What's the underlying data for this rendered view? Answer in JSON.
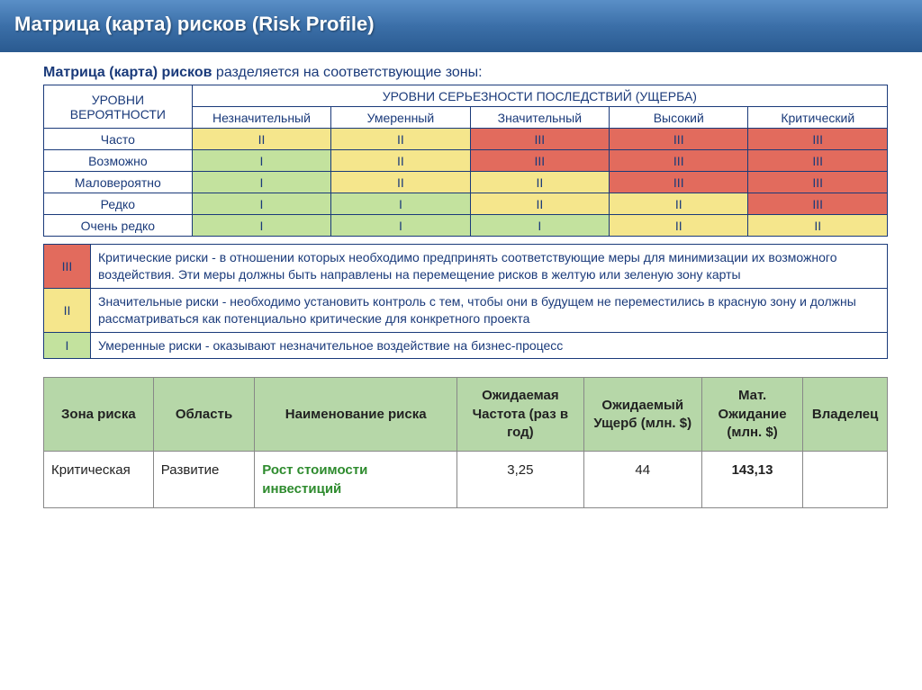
{
  "title": "Матрица (карта) рисков (Risk Profile)",
  "intro_bold": "Матрица (карта) рисков",
  "intro_rest": " разделяется на соответствующие зоны:",
  "colors": {
    "red": "#e26b5d",
    "yellow": "#f5e68c",
    "green": "#c3e29e"
  },
  "matrix": {
    "header_prob": "УРОВНИ ВЕРОЯТНОСТИ",
    "header_severity": "УРОВНИ СЕРЬЕЗНОСТИ ПОСЛЕДСТВИЙ (УЩЕРБА)",
    "severity_levels": [
      "Незначительный",
      "Умеренный",
      "Значительный",
      "Высокий",
      "Критический"
    ],
    "rows": [
      {
        "label": "Часто",
        "cells": [
          "II",
          "II",
          "III",
          "III",
          "III"
        ],
        "colors": [
          "yellow",
          "yellow",
          "red",
          "red",
          "red"
        ]
      },
      {
        "label": "Возможно",
        "cells": [
          "I",
          "II",
          "III",
          "III",
          "III"
        ],
        "colors": [
          "green",
          "yellow",
          "red",
          "red",
          "red"
        ]
      },
      {
        "label": "Маловероятно",
        "cells": [
          "I",
          "II",
          "II",
          "III",
          "III"
        ],
        "colors": [
          "green",
          "yellow",
          "yellow",
          "red",
          "red"
        ]
      },
      {
        "label": "Редко",
        "cells": [
          "I",
          "I",
          "II",
          "II",
          "III"
        ],
        "colors": [
          "green",
          "green",
          "yellow",
          "yellow",
          "red"
        ]
      },
      {
        "label": "Очень редко",
        "cells": [
          "I",
          "I",
          "I",
          "II",
          "II"
        ],
        "colors": [
          "green",
          "green",
          "green",
          "yellow",
          "yellow"
        ]
      }
    ]
  },
  "legend": [
    {
      "lvl": "III",
      "color": "red",
      "text": "Критические риски - в отношении которых необходимо предпринять соответствующие меры для минимизации их возможного воздействия. Эти меры должны быть направлены на перемещение рисков в желтую или зеленую зону карты"
    },
    {
      "lvl": "II",
      "color": "yellow",
      "text": "Значительные риски - необходимо установить контроль с тем, чтобы они в будущем не переместились в красную зону и должны рассматриваться как потенциально критические для конкретного проекта"
    },
    {
      "lvl": "I",
      "color": "green",
      "text": "Умеренные риски - оказывают незначительное воздействие на бизнес-процесс"
    }
  ],
  "zone_table": {
    "headers": [
      "Зона риска",
      "Область",
      "Наименование риска",
      "Ожидаемая Частота (раз в год)",
      "Ожидаемый Ущерб (млн. $)",
      "Мат. Ожидание (млн. $)",
      "Владелец"
    ],
    "row": {
      "zone": "Критическая",
      "area": "Развитие",
      "name": "Рост стоимости инвестиций",
      "freq": "3,25",
      "damage": "44",
      "expect": "143,13",
      "owner": ""
    }
  }
}
